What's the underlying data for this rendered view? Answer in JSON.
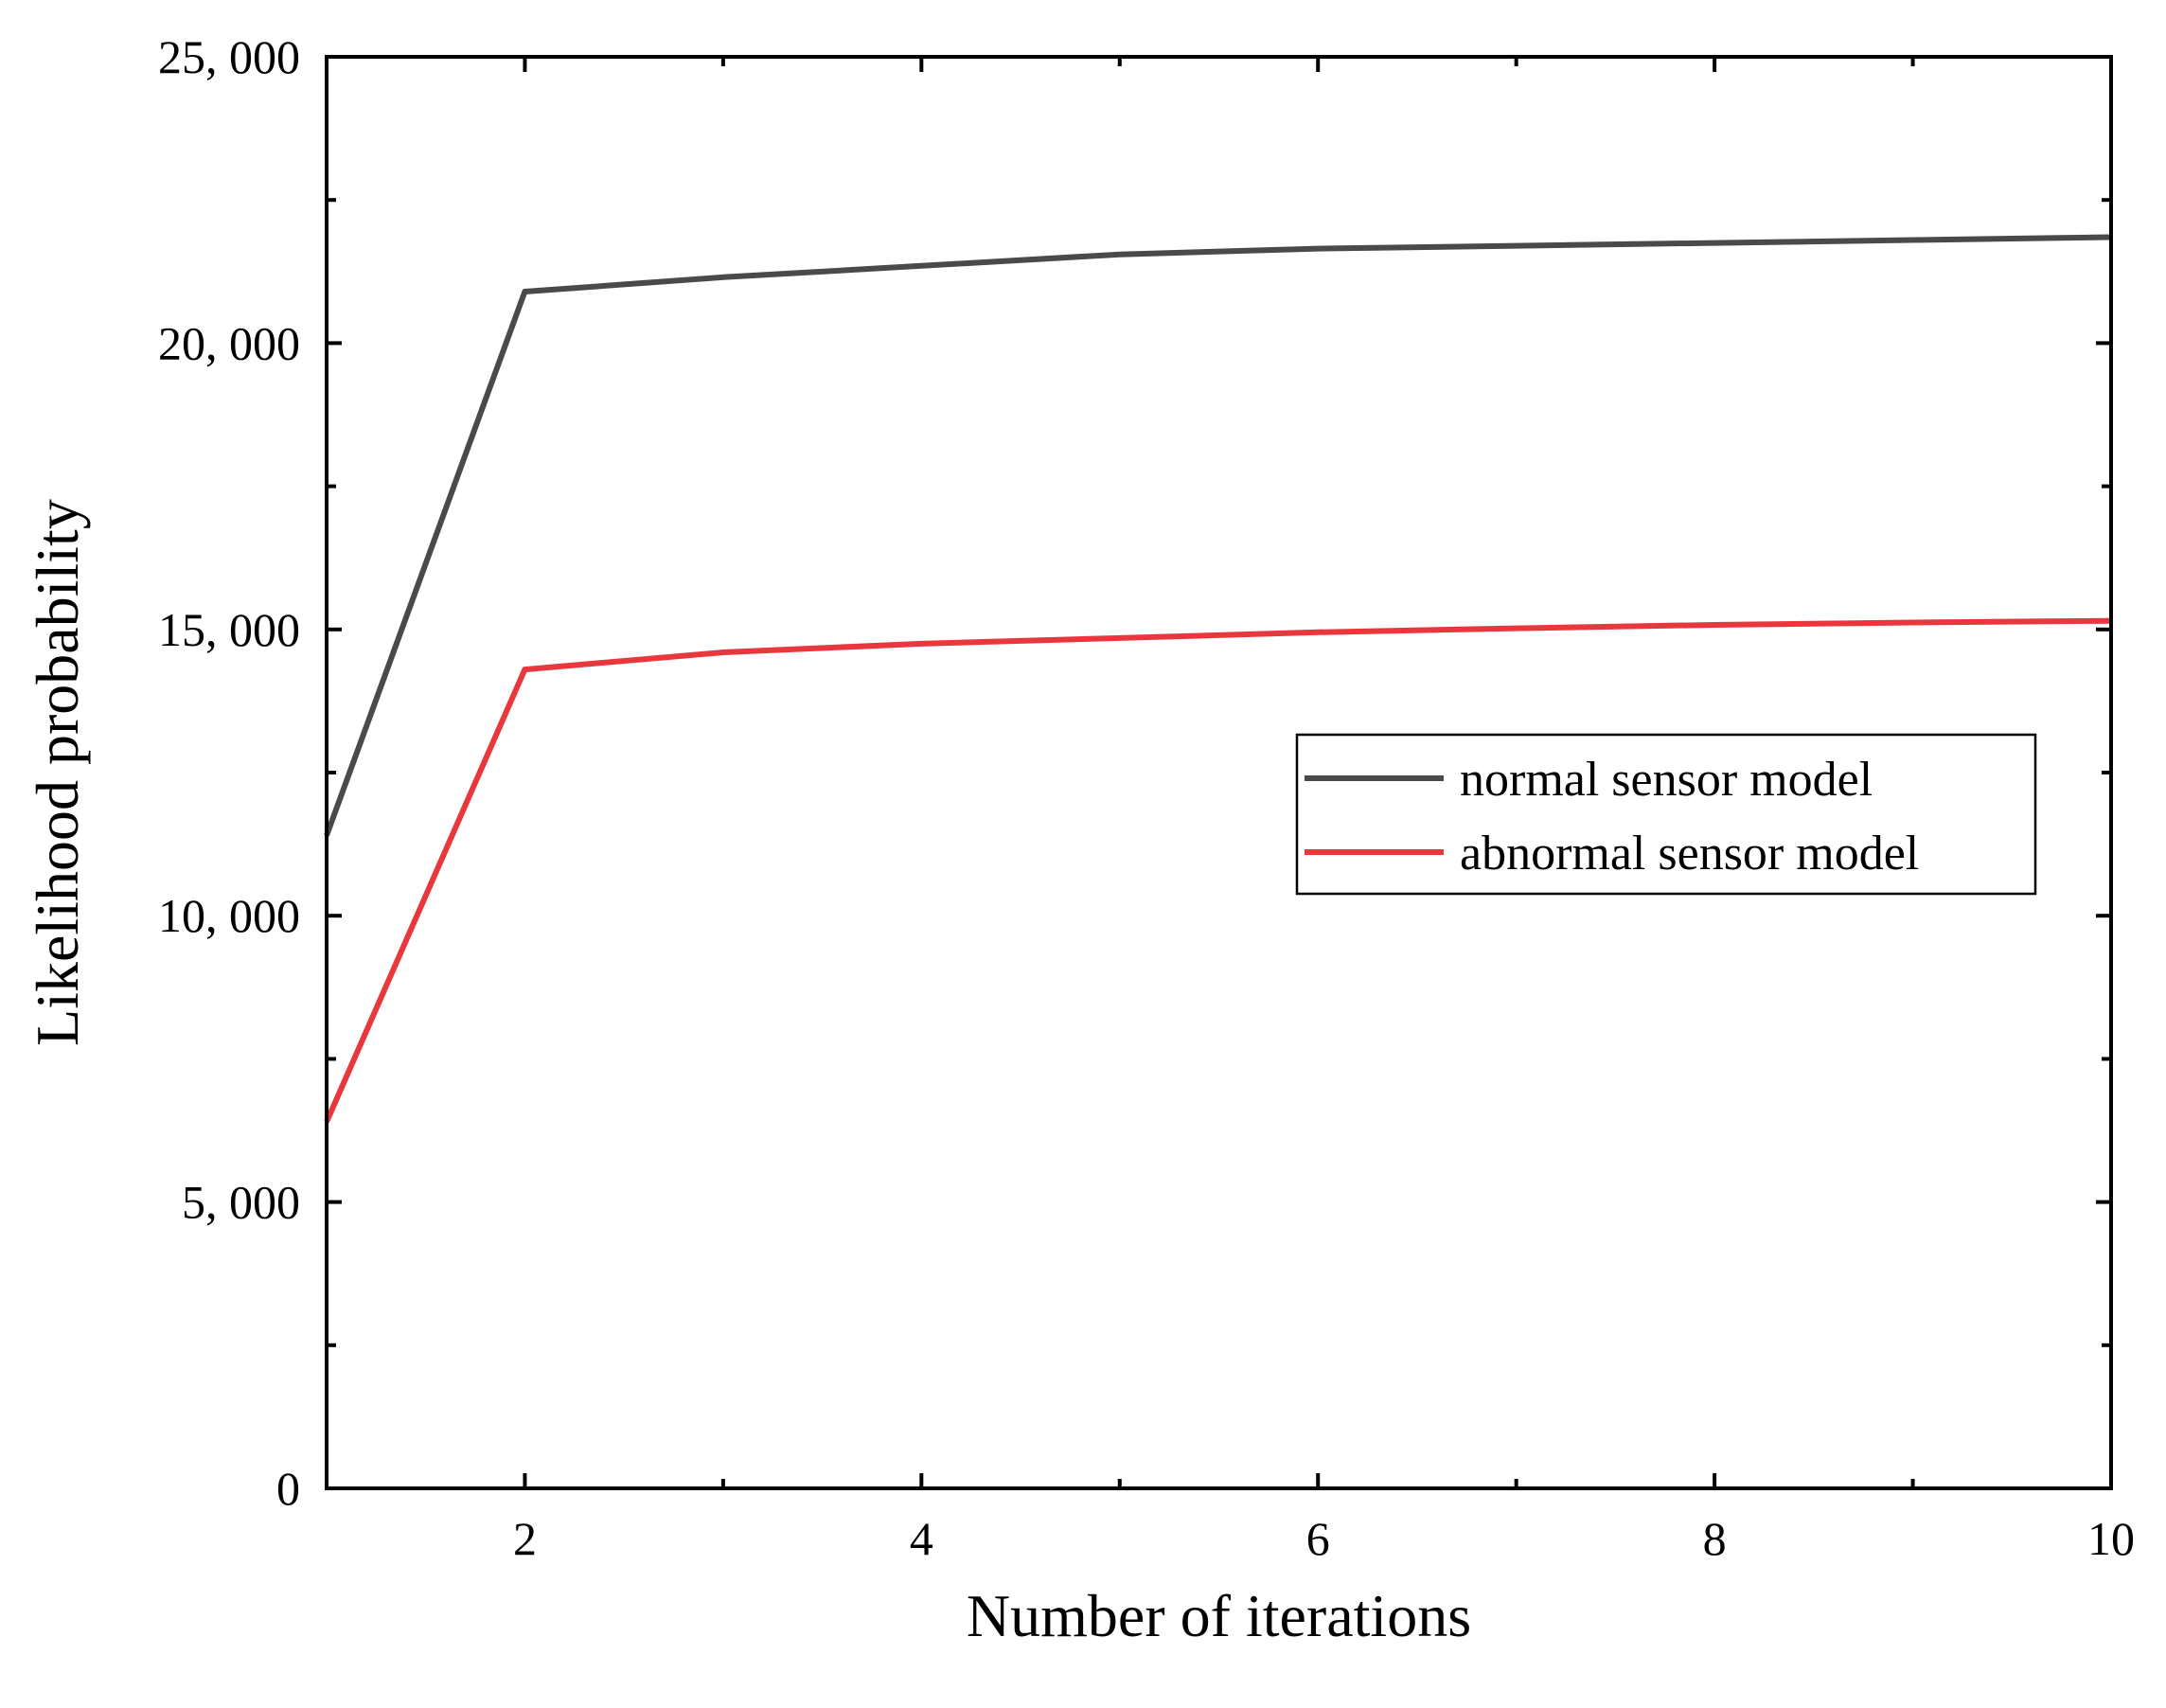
{
  "chart_data": {
    "type": "line",
    "title": "",
    "xlabel": "Number of iterations",
    "ylabel": "Likelihood probability",
    "xlim": [
      1,
      10
    ],
    "ylim": [
      0,
      25000
    ],
    "x_ticks": [
      2,
      4,
      6,
      8,
      10
    ],
    "x_tick_labels": [
      "2",
      "4",
      "6",
      "8",
      "10"
    ],
    "x_minor_ticks": [
      3,
      5,
      7,
      9
    ],
    "y_ticks": [
      0,
      5000,
      10000,
      15000,
      20000,
      25000
    ],
    "y_tick_labels": [
      "0",
      "5, 000",
      "10, 000",
      "15, 000",
      "20, 000",
      "25, 000"
    ],
    "y_minor_ticks": [
      2500,
      7500,
      12500,
      17500,
      22500
    ],
    "grid": false,
    "legend_position": "center-right",
    "x": [
      1,
      2,
      3,
      4,
      5,
      6,
      7,
      8,
      9,
      10
    ],
    "series": [
      {
        "name": "normal sensor model",
        "color": "#4a4a4a",
        "values": [
          11400,
          20900,
          21150,
          21350,
          21550,
          21650,
          21700,
          21750,
          21800,
          21850
        ]
      },
      {
        "name": "abnormal sensor model",
        "color": "#e8383d",
        "values": [
          6400,
          14300,
          14600,
          14750,
          14850,
          14950,
          15020,
          15080,
          15120,
          15150
        ]
      }
    ]
  }
}
